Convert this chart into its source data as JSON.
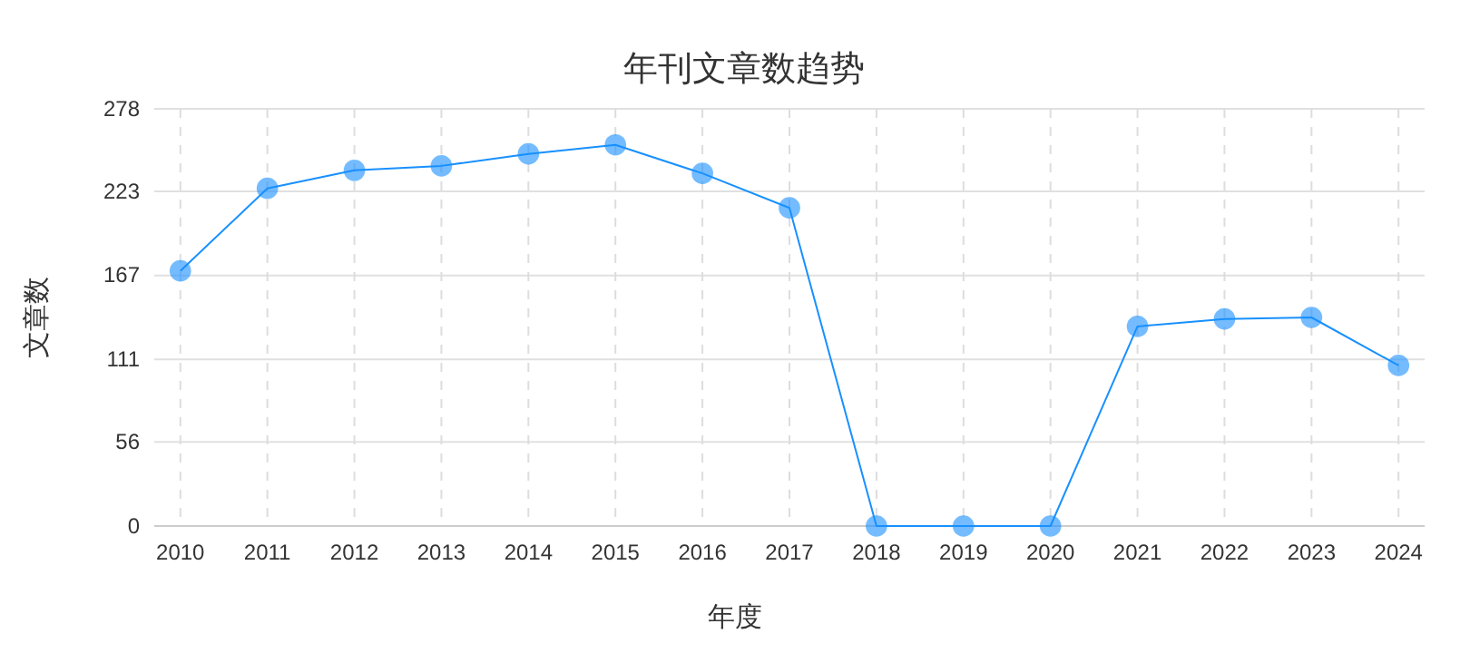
{
  "chart_data": {
    "type": "line",
    "title": "年刊文章数趋势",
    "xlabel": "年度",
    "ylabel": "文章数",
    "categories": [
      "2010",
      "2011",
      "2012",
      "2013",
      "2014",
      "2015",
      "2016",
      "2017",
      "2018",
      "2019",
      "2020",
      "2021",
      "2022",
      "2023",
      "2024"
    ],
    "series": [
      {
        "color": "#1890ff",
        "values": [
          170,
          225,
          237,
          240,
          248,
          254,
          235,
          212,
          0,
          0,
          0,
          133,
          138,
          139,
          107
        ]
      }
    ],
    "ylim": [
      0,
      278
    ],
    "yticks": [
      0,
      56,
      111,
      167,
      223,
      278
    ],
    "grid": true,
    "marker": "circle",
    "line_style": "solid"
  }
}
